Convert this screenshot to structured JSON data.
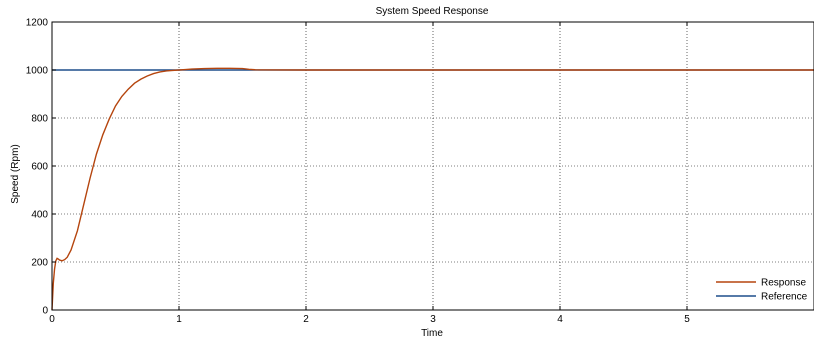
{
  "chart_data": {
    "type": "line",
    "title": "System Speed Response",
    "xlabel": "Time",
    "ylabel": "Speed (Rpm)",
    "xlim": [
      0,
      6
    ],
    "ylim": [
      0,
      1200
    ],
    "xticks": [
      0,
      1,
      2,
      3,
      4,
      5
    ],
    "yticks": [
      0,
      200,
      400,
      600,
      800,
      1000,
      1200
    ],
    "grid": true,
    "legend_position": "bottom-right",
    "series": [
      {
        "name": "Response",
        "color": "#b5450e",
        "x": [
          0,
          0.01,
          0.02,
          0.03,
          0.04,
          0.05,
          0.06,
          0.08,
          0.1,
          0.12,
          0.15,
          0.2,
          0.25,
          0.3,
          0.35,
          0.4,
          0.45,
          0.5,
          0.55,
          0.6,
          0.65,
          0.7,
          0.75,
          0.8,
          0.85,
          0.9,
          0.95,
          1.0,
          1.05,
          1.1,
          1.15,
          1.2,
          1.3,
          1.4,
          1.5,
          1.55,
          1.6,
          2.0,
          3.0,
          4.0,
          5.0,
          6.0
        ],
        "values": [
          0,
          110,
          170,
          205,
          215,
          212,
          208,
          205,
          210,
          220,
          250,
          330,
          440,
          550,
          650,
          730,
          795,
          850,
          890,
          920,
          945,
          962,
          975,
          985,
          992,
          996,
          998,
          1000,
          1002,
          1004,
          1005,
          1006,
          1007,
          1007,
          1006,
          1003,
          1001,
          1000,
          1000,
          1000,
          1000,
          1000
        ]
      },
      {
        "name": "Reference",
        "color": "#1f4e8c",
        "x": [
          0,
          6
        ],
        "values": [
          1000,
          1000
        ]
      }
    ]
  }
}
